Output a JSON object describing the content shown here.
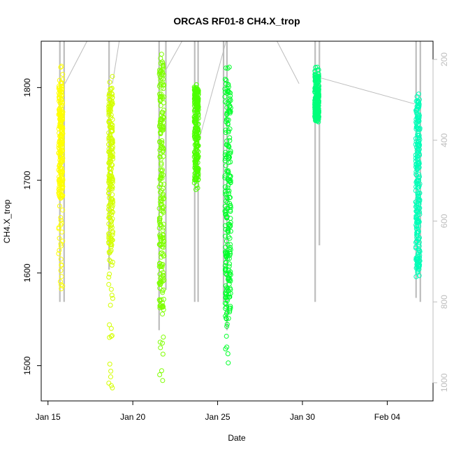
{
  "chart_data": {
    "type": "scatter",
    "title": "ORCAS RF01-8 CH4.X_trop",
    "xlabel": "Date",
    "ylabel": "CH4.X_trop",
    "x_ticks": [
      {
        "day": 15,
        "label": "Jan 15"
      },
      {
        "day": 20,
        "label": "Jan 20"
      },
      {
        "day": 25,
        "label": "Jan 25"
      },
      {
        "day": 30,
        "label": "Jan 30"
      },
      {
        "day": 35,
        "label": "Feb 04"
      }
    ],
    "y_ticks": [
      {
        "value": 1500,
        "label": "1500"
      },
      {
        "value": 1600,
        "label": "1600"
      },
      {
        "value": 1700,
        "label": "1700"
      },
      {
        "value": 1800,
        "label": "1800"
      }
    ],
    "y2_ticks": [
      {
        "value": 200,
        "label": "200"
      },
      {
        "value": 400,
        "label": "400"
      },
      {
        "value": 600,
        "label": "600"
      },
      {
        "value": 800,
        "label": "800"
      },
      {
        "value": 1000,
        "label": "1000"
      }
    ],
    "xlim": [
      14.6,
      37.7
    ],
    "ylim": [
      1462,
      1850
    ],
    "y2lim": [
      1045,
      155
    ],
    "grid": false,
    "legend": "none",
    "point_color_gradient": [
      "#ffff00",
      "#ccff00",
      "#80ff00",
      "#33ff00",
      "#00ff44",
      "#00ffb0"
    ],
    "secondary_color": "#bdbdbd",
    "series": [
      {
        "x_center": 15.75,
        "width": 0.25,
        "y_min": 1583,
        "y_max": 1823,
        "dense_min": 1680,
        "dense_max": 1810,
        "color": "#ffff00"
      },
      {
        "x_center": 18.7,
        "width": 0.25,
        "y_min": 1476,
        "y_max": 1812,
        "dense_min": 1630,
        "dense_max": 1800,
        "color": "#d4ff00"
      },
      {
        "x_center": 21.7,
        "width": 0.28,
        "y_min": 1484,
        "y_max": 1836,
        "dense_min": 1560,
        "dense_max": 1830,
        "color": "#7fff00"
      },
      {
        "x_center": 23.75,
        "width": 0.25,
        "y_min": 1690,
        "y_max": 1803,
        "dense_min": 1700,
        "dense_max": 1800,
        "color": "#4cff00"
      },
      {
        "x_center": 25.6,
        "width": 0.35,
        "y_min": 1503,
        "y_max": 1822,
        "dense_min": 1550,
        "dense_max": 1810,
        "color": "#00ff2a"
      },
      {
        "x_center": 30.85,
        "width": 0.25,
        "y_min": 1763,
        "y_max": 1822,
        "dense_min": 1765,
        "dense_max": 1815,
        "color": "#00ff7a"
      },
      {
        "x_center": 36.8,
        "width": 0.25,
        "y_min": 1596,
        "y_max": 1793,
        "dense_min": 1600,
        "dense_max": 1790,
        "color": "#00ffb8"
      }
    ],
    "profile_lines": [
      {
        "x": 15.7,
        "p_top": 155,
        "p_bottom": 800
      },
      {
        "x": 15.95,
        "p_top": 155,
        "p_bottom": 800
      },
      {
        "x": 18.6,
        "p_top": 155,
        "p_bottom": 720
      },
      {
        "x": 21.55,
        "p_top": 155,
        "p_bottom": 870
      },
      {
        "x": 21.95,
        "p_top": 155,
        "p_bottom": 770
      },
      {
        "x": 23.65,
        "p_top": 155,
        "p_bottom": 800
      },
      {
        "x": 23.85,
        "p_top": 155,
        "p_bottom": 800
      },
      {
        "x": 25.35,
        "p_top": 155,
        "p_bottom": 800
      },
      {
        "x": 25.55,
        "p_top": 155,
        "p_bottom": 870
      },
      {
        "x": 30.75,
        "p_top": 155,
        "p_bottom": 800
      },
      {
        "x": 31.0,
        "p_top": 155,
        "p_bottom": 660
      },
      {
        "x": 36.7,
        "p_top": 155,
        "p_bottom": 790
      },
      {
        "x": 36.95,
        "p_top": 155,
        "p_bottom": 800
      }
    ],
    "transit_lines": [
      {
        "x1": 16.0,
        "p1": 260,
        "x2": 17.3,
        "p2": 155
      },
      {
        "x1": 18.8,
        "p1": 260,
        "x2": 19.2,
        "p2": 155
      },
      {
        "x1": 21.5,
        "p1": 260,
        "x2": 22.9,
        "p2": 155
      },
      {
        "x1": 23.9,
        "p1": 400,
        "x2": 25.5,
        "p2": 155
      },
      {
        "x1": 28.5,
        "p1": 155,
        "x2": 29.8,
        "p2": 260
      },
      {
        "x1": 31.0,
        "p1": 245,
        "x2": 36.6,
        "p2": 310
      }
    ]
  }
}
